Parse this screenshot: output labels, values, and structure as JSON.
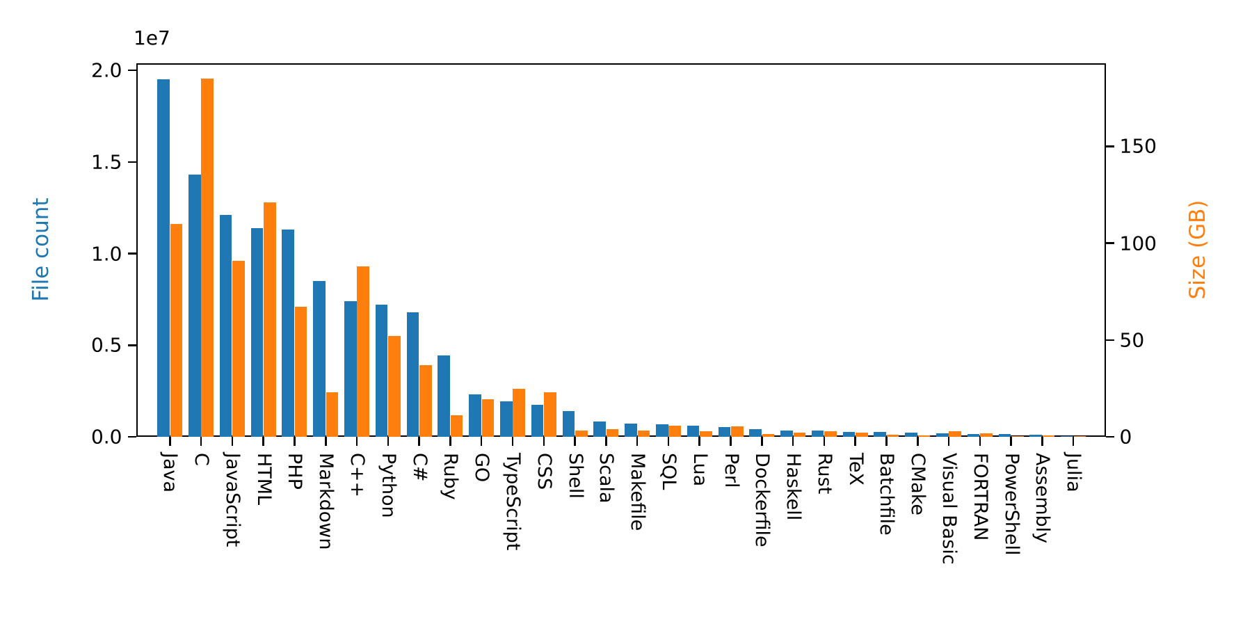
{
  "chart_data": {
    "type": "bar",
    "title": "",
    "axis_offset_text": "1e7",
    "ylabel_left": "File count",
    "ylabel_right": "Size (GB)",
    "ylabel_left_color": "#1f77b4",
    "ylabel_right_color": "#ff7f0e",
    "bar_color_file_count": "#1f77b4",
    "bar_color_size": "#ff7f0e",
    "ylim_left": [
      0,
      20400000
    ],
    "ylim_right": [
      0,
      193
    ],
    "grid": false,
    "legend_position": "none",
    "y_left_tick_labels": [
      "0.0",
      "0.5",
      "1.0",
      "1.5",
      "2.0"
    ],
    "y_left_tick_values": [
      0,
      5000000,
      10000000,
      15000000,
      20000000
    ],
    "y_right_tick_labels": [
      "0",
      "50",
      "100",
      "150"
    ],
    "y_right_tick_values": [
      0,
      50,
      100,
      150
    ],
    "categories": [
      "Java",
      "C",
      "JavaScript",
      "HTML",
      "PHP",
      "Markdown",
      "C++",
      "Python",
      "C#",
      "Ruby",
      "GO",
      "TypeScript",
      "CSS",
      "Shell",
      "Scala",
      "Makefile",
      "SQL",
      "Lua",
      "Perl",
      "Dockerfile",
      "Haskell",
      "Rust",
      "TeX",
      "Batchfile",
      "CMake",
      "Visual Basic",
      "FORTRAN",
      "PowerShell",
      "Assembly",
      "Julia"
    ],
    "series": [
      {
        "name": "File count",
        "axis": "left",
        "values": [
          19500000,
          14300000,
          12100000,
          11400000,
          11300000,
          8500000,
          7400000,
          7200000,
          6800000,
          4450000,
          2300000,
          1950000,
          1750000,
          1400000,
          830000,
          710000,
          690000,
          590000,
          530000,
          410000,
          360000,
          340000,
          270000,
          250000,
          210000,
          200000,
          160000,
          150000,
          110000,
          50000
        ]
      },
      {
        "name": "Size (GB)",
        "axis": "right",
        "values": [
          110,
          185,
          91,
          121,
          67,
          23,
          88,
          52,
          37,
          11,
          19.5,
          24.7,
          23,
          3.2,
          3.8,
          3.4,
          5.8,
          2.9,
          5.3,
          1.3,
          2.0,
          2.8,
          2.2,
          1.0,
          0.7,
          3.0,
          1.8,
          0.4,
          0.7,
          0.3
        ]
      }
    ]
  }
}
